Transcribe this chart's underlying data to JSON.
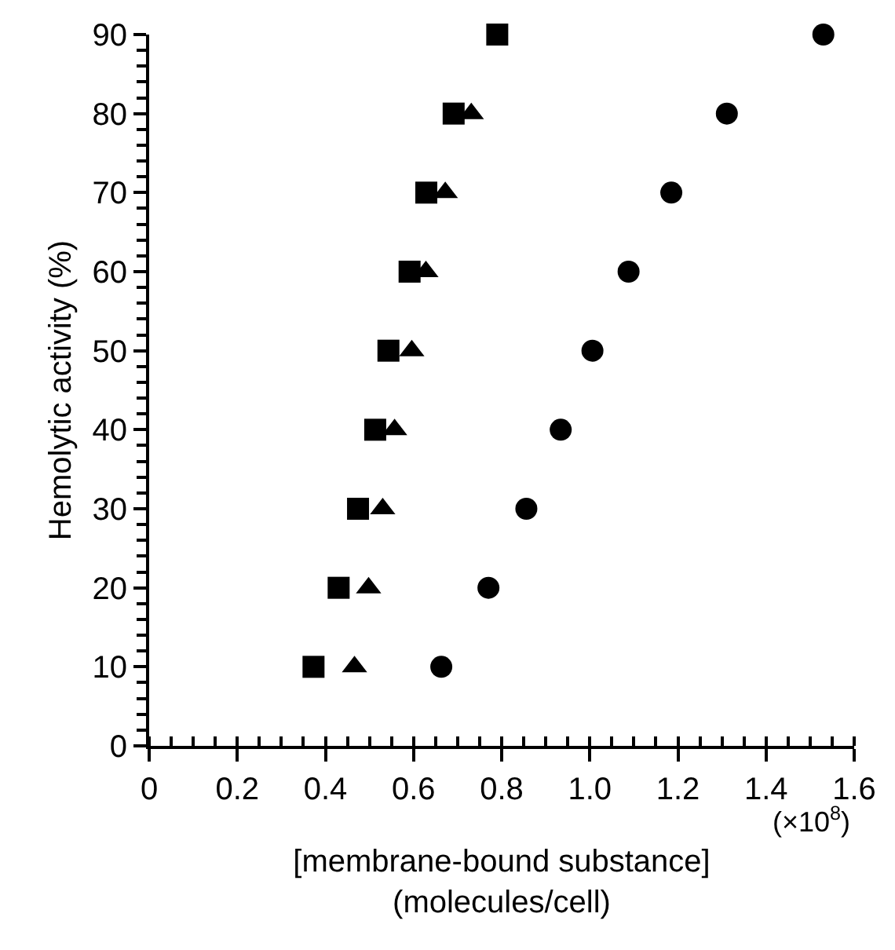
{
  "chart_data": {
    "type": "scatter",
    "xlabel": "[membrane-bound substance]\n(molecules/cell)",
    "ylabel": "Hemolytic activity (%)",
    "annotations": [
      "(×10$^{8}$)"
    ],
    "x": [
      0.663,
      0.77,
      0.856,
      0.934,
      1.006,
      1.088,
      1.185,
      1.311,
      1.53
    ],
    "series": [
      {
        "color": "#000000",
        "marker": "circle",
        "values": [
          10,
          20,
          30,
          40,
          50,
          60,
          70,
          80,
          90
        ]
      },
      {
        "color": "#000000",
        "marker": "square",
        "x": [
          0.373,
          0.43,
          0.474,
          0.513,
          0.543,
          0.591,
          0.629,
          0.691,
          0.79
        ],
        "values": [
          10,
          20,
          30,
          40,
          50,
          60,
          70,
          80,
          90
        ]
      },
      {
        "color": "#000000",
        "marker": "triangle",
        "x": [
          0.466,
          0.498,
          0.53,
          0.557,
          0.596,
          0.628,
          0.672,
          0.731,
          null
        ],
        "values": [
          10,
          20,
          30,
          40,
          50,
          60,
          70,
          80,
          null
        ]
      }
    ],
    "xlim": [
      0,
      1.6
    ],
    "ylim": [
      0,
      90
    ],
    "xticks": [
      0,
      {
        "value": 0.2,
        "label": "0.2"
      },
      {
        "value": 0.4,
        "label": "0.4"
      },
      {
        "value": 0.6,
        "label": "0.6"
      },
      {
        "value": 0.8,
        "label": "0.8"
      },
      {
        "value": 1.0,
        "label": "1.0"
      },
      {
        "value": 1.2,
        "label": "1.2"
      },
      {
        "value": 1.4,
        "label": "1.4"
      },
      {
        "value": 1.6,
        "label": "1.6"
      }
    ],
    "yticks": [
      0,
      10,
      20,
      30,
      40,
      50,
      60,
      70,
      80,
      90
    ]
  }
}
